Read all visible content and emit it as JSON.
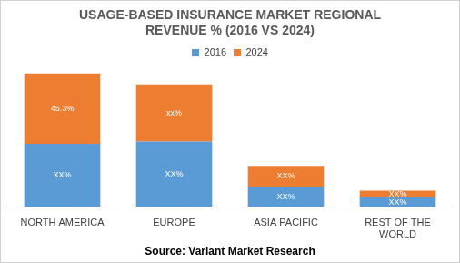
{
  "chart_data": {
    "type": "bar",
    "title": [
      "USAGE-BASED INSURANCE MARKET REGIONAL",
      "REVENUE % (2016 VS 2024)"
    ],
    "annotation": "Source: Variant Market Research",
    "categories": [
      "NORTH AMERICA",
      "EUROPE",
      "ASIA PACIFIC",
      "REST OF THE WORLD"
    ],
    "series": [
      {
        "name": "2016",
        "color": "#5b9bd5",
        "values": [
          40.5,
          42,
          13,
          6
        ],
        "value_labels": [
          "XX%",
          "XX%",
          "XX%",
          "XX%"
        ]
      },
      {
        "name": "2024",
        "color": "#ed7d31",
        "values": [
          45.3,
          36.8,
          13.3,
          4.3
        ],
        "value_labels": [
          "45.3%",
          "xx%",
          "XX%",
          "XX%"
        ]
      }
    ],
    "ylim": [
      0,
      90
    ],
    "stacked": true,
    "data_labels": true,
    "legend": "top",
    "grid": false,
    "tick_labels": "x"
  }
}
